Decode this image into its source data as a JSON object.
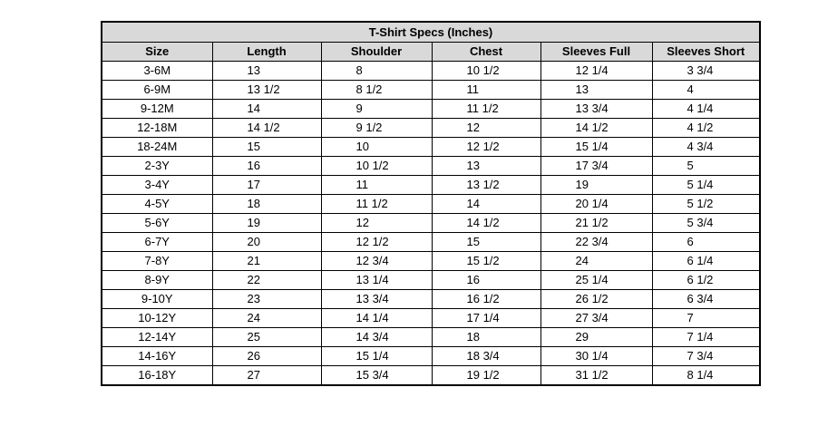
{
  "table": {
    "title": "T-Shirt Specs (Inches)",
    "headers": [
      "Size",
      "Length",
      "Shoulder",
      "Chest",
      "Sleeves Full",
      "Sleeves Short"
    ],
    "rows": [
      [
        "3-6M",
        "13",
        "8",
        "10 1/2",
        "12 1/4",
        "3 3/4"
      ],
      [
        "6-9M",
        "13 1/2",
        "8 1/2",
        "11",
        "13",
        "4"
      ],
      [
        "9-12M",
        "14",
        "9",
        "11 1/2",
        "13 3/4",
        "4 1/4"
      ],
      [
        "12-18M",
        "14 1/2",
        "9 1/2",
        "12",
        "14 1/2",
        "4 1/2"
      ],
      [
        "18-24M",
        "15",
        "10",
        "12 1/2",
        "15 1/4",
        "4 3/4"
      ],
      [
        "2-3Y",
        "16",
        "10 1/2",
        "13",
        "17 3/4",
        "5"
      ],
      [
        "3-4Y",
        "17",
        "11",
        "13 1/2",
        "19",
        "5 1/4"
      ],
      [
        "4-5Y",
        "18",
        "11 1/2",
        "14",
        "20 1/4",
        "5 1/2"
      ],
      [
        "5-6Y",
        "19",
        "12",
        "14 1/2",
        "21 1/2",
        "5 3/4"
      ],
      [
        "6-7Y",
        "20",
        "12 1/2",
        "15",
        "22 3/4",
        "6"
      ],
      [
        "7-8Y",
        "21",
        "12 3/4",
        "15 1/2",
        "24",
        "6 1/4"
      ],
      [
        "8-9Y",
        "22",
        "13 1/4",
        "16",
        "25 1/4",
        "6 1/2"
      ],
      [
        "9-10Y",
        "23",
        "13 3/4",
        "16 1/2",
        "26 1/2",
        "6 3/4"
      ],
      [
        "10-12Y",
        "24",
        "14 1/4",
        "17 1/4",
        "27 3/4",
        "7"
      ],
      [
        "12-14Y",
        "25",
        "14 3/4",
        "18",
        "29",
        "7 1/4"
      ],
      [
        "14-16Y",
        "26",
        "15 1/4",
        "18 3/4",
        "30 1/4",
        "7 3/4"
      ],
      [
        "16-18Y",
        "27",
        "15 3/4",
        "19 1/2",
        "31 1/2",
        "8 1/4"
      ]
    ]
  }
}
